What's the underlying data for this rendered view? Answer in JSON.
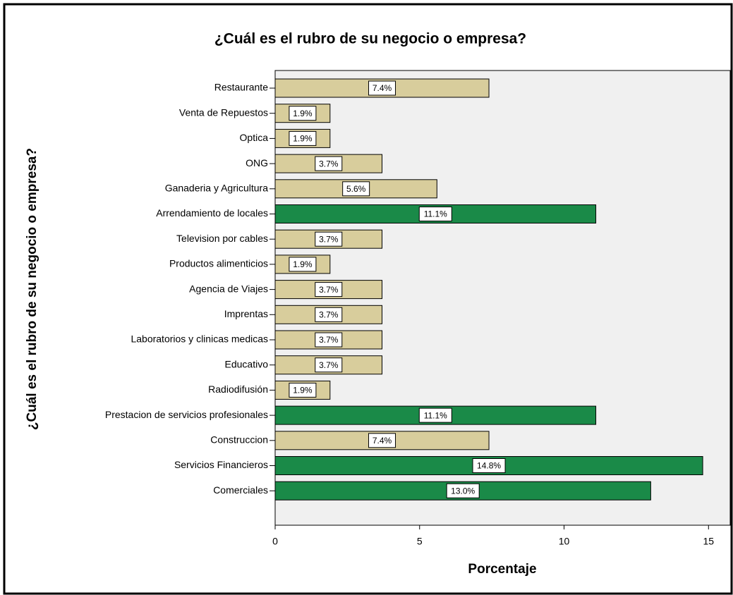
{
  "chart_data": {
    "type": "barh",
    "title": "¿Cuál es el rubro de su negocio o empresa?",
    "xlabel": "Porcentaje",
    "ylabel": "¿Cuál es el rubro de su negocio o empresa?",
    "categories": [
      "Restaurante",
      "Venta de Repuestos",
      "Optica",
      "ONG",
      "Ganaderia y Agricultura",
      "Arrendamiento de locales",
      "Television por cables",
      "Productos alimenticios",
      "Agencia de Viajes",
      "Imprentas",
      "Laboratorios y clinicas medicas",
      "Educativo",
      "Radiodifusión",
      "Prestacion de servicios profesionales",
      "Construccion",
      "Servicios Financieros",
      "Comerciales"
    ],
    "values": [
      7.4,
      1.9,
      1.9,
      3.7,
      5.6,
      11.1,
      3.7,
      1.9,
      3.7,
      3.7,
      3.7,
      3.7,
      1.9,
      11.1,
      7.4,
      14.8,
      13.0
    ],
    "value_labels": [
      "7.4%",
      "1.9%",
      "1.9%",
      "3.7%",
      "5.6%",
      "11.1%",
      "3.7%",
      "1.9%",
      "3.7%",
      "3.7%",
      "3.7%",
      "3.7%",
      "1.9%",
      "11.1%",
      "7.4%",
      "14.8%",
      "13.0%"
    ],
    "colors": [
      "#d8cd9c",
      "#d8cd9c",
      "#d8cd9c",
      "#d8cd9c",
      "#d8cd9c",
      "#1a8a48",
      "#d8cd9c",
      "#d8cd9c",
      "#d8cd9c",
      "#d8cd9c",
      "#d8cd9c",
      "#d8cd9c",
      "#d8cd9c",
      "#1a8a48",
      "#d8cd9c",
      "#1a8a48",
      "#1a8a48"
    ],
    "xlim": [
      0,
      15.75
    ],
    "xticks": [
      0,
      5,
      10,
      15
    ]
  }
}
